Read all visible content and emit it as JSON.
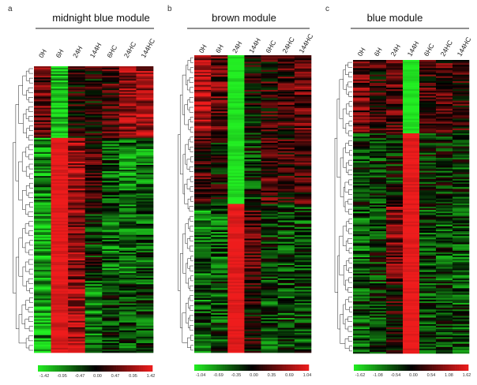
{
  "panels": [
    {
      "letter": "a",
      "title": "midnight blue module",
      "columns": [
        "0H",
        "6H",
        "24H",
        "144H",
        "6HC",
        "24HC",
        "144HC"
      ],
      "scale": [
        "-1.42",
        "-0.95",
        "-0.47",
        "0.00",
        "0.47",
        "0.95",
        "1.42"
      ]
    },
    {
      "letter": "b",
      "title": "brown module",
      "columns": [
        "0H",
        "6H",
        "24H",
        "144H",
        "6HC",
        "24HC",
        "144HC"
      ],
      "scale": [
        "-1.04",
        "-0.69",
        "-0.35",
        "0.00",
        "0.35",
        "0.69",
        "1.04"
      ]
    },
    {
      "letter": "c",
      "title": "blue module",
      "columns": [
        "0H",
        "6H",
        "24H",
        "144H",
        "6HC",
        "24HC",
        "144HC"
      ],
      "scale": [
        "-1.62",
        "-1.08",
        "-0.54",
        "0.00",
        "0.54",
        "1.08",
        "1.62"
      ]
    }
  ],
  "chart_data": [
    {
      "type": "heatmap",
      "title": "midnight blue module",
      "x": [
        "0H",
        "6H",
        "24H",
        "144H",
        "6HC",
        "24HC",
        "144HC"
      ],
      "color_scale": [
        -1.42,
        -0.95,
        -0.47,
        0.0,
        0.47,
        0.95,
        1.42
      ],
      "colors": {
        "low": "#22ee22",
        "mid": "#000000",
        "high": "#ee1c1c"
      },
      "column_pattern": [
        {
          "segment": "top",
          "values": [
            0.6,
            -1.2,
            0.2,
            0.1,
            0.4,
            0.8,
            0.9
          ]
        },
        {
          "segment": "upper-middle",
          "values": [
            -0.8,
            1.4,
            0.9,
            0.3,
            -0.5,
            -0.7,
            -0.7
          ]
        },
        {
          "segment": "lower-middle",
          "values": [
            -0.9,
            1.4,
            0.8,
            -0.2,
            -0.6,
            -0.6,
            -0.5
          ]
        },
        {
          "segment": "bottom",
          "values": [
            -0.9,
            1.3,
            1.0,
            -0.7,
            -0.3,
            -0.4,
            -0.4
          ]
        }
      ],
      "dendrogram": "left"
    },
    {
      "type": "heatmap",
      "title": "brown module",
      "x": [
        "0H",
        "6H",
        "24H",
        "144H",
        "6HC",
        "24HC",
        "144HC"
      ],
      "color_scale": [
        -1.04,
        -0.69,
        -0.35,
        0.0,
        0.35,
        0.69,
        1.04
      ],
      "colors": {
        "low": "#22ee22",
        "mid": "#000000",
        "high": "#ee1c1c"
      },
      "column_pattern": [
        {
          "segment": "top",
          "values": [
            0.8,
            0.4,
            -1.0,
            0.0,
            0.2,
            0.3,
            0.4
          ]
        },
        {
          "segment": "upper-middle",
          "values": [
            0.3,
            0.0,
            -1.0,
            -0.2,
            0.3,
            0.2,
            0.3
          ]
        },
        {
          "segment": "lower-middle",
          "values": [
            -0.5,
            -0.4,
            1.0,
            0.3,
            -0.2,
            -0.3,
            -0.3
          ]
        },
        {
          "segment": "bottom",
          "values": [
            -0.4,
            -0.3,
            1.0,
            0.1,
            -0.3,
            -0.3,
            -0.3
          ]
        }
      ],
      "dendrogram": "left"
    },
    {
      "type": "heatmap",
      "title": "blue module",
      "x": [
        "0H",
        "6H",
        "24H",
        "144H",
        "6HC",
        "24HC",
        "144HC"
      ],
      "color_scale": [
        -1.62,
        -1.08,
        -0.54,
        0.0,
        0.54,
        1.08,
        1.62
      ],
      "colors": {
        "low": "#22ee22",
        "mid": "#000000",
        "high": "#ee1c1c"
      },
      "column_pattern": [
        {
          "segment": "top",
          "values": [
            0.7,
            0.3,
            0.5,
            -1.6,
            0.4,
            0.5,
            0.3
          ]
        },
        {
          "segment": "upper-middle",
          "values": [
            -0.4,
            -0.4,
            -0.2,
            1.6,
            -0.3,
            -0.3,
            -0.4
          ]
        },
        {
          "segment": "lower-middle",
          "values": [
            -0.6,
            -0.3,
            0.8,
            1.6,
            -0.4,
            -0.5,
            -0.5
          ]
        },
        {
          "segment": "bottom",
          "values": [
            -0.5,
            -0.4,
            0.3,
            1.6,
            -0.4,
            -0.4,
            -0.5
          ]
        }
      ],
      "dendrogram": "left"
    }
  ]
}
